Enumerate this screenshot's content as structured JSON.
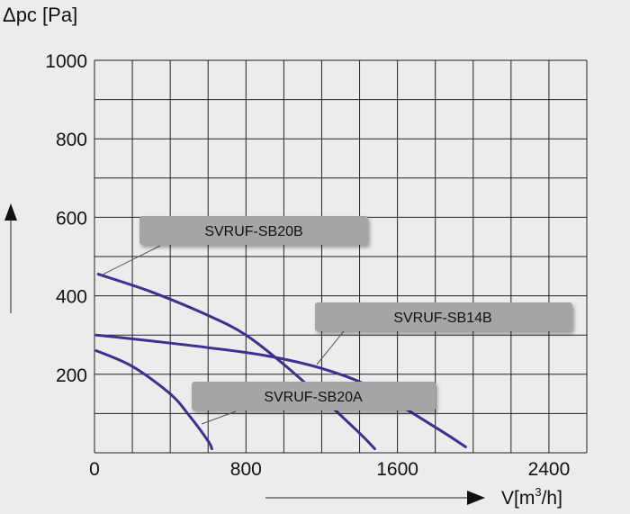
{
  "chart_data": {
    "type": "line",
    "ylabel": "Δpc [Pa]",
    "xlabel_main": "V[m",
    "xlabel_sup": "3",
    "xlabel_tail": "/h]",
    "xlim": [
      0,
      2600
    ],
    "ylim": [
      0,
      1000
    ],
    "grid": true,
    "x_ticks": [
      0,
      800,
      1600,
      2400
    ],
    "x_tick_labels": [
      "0",
      "800",
      "1600",
      "2400"
    ],
    "y_ticks": [
      200,
      400,
      600,
      800,
      1000
    ],
    "y_tick_labels": [
      "200",
      "400",
      "600",
      "800",
      "1000"
    ],
    "line_color": "#3b3191",
    "series": [
      {
        "name": "SVRUF-SB20B",
        "x": [
          20,
          300,
          600,
          800,
          1000,
          1200,
          1400,
          1480
        ],
        "y": [
          455,
          410,
          350,
          300,
          225,
          140,
          50,
          10
        ]
      },
      {
        "name": "SVRUF-SB14B",
        "x": [
          10,
          300,
          600,
          900,
          1200,
          1450,
          1650,
          1850,
          1960
        ],
        "y": [
          300,
          285,
          268,
          248,
          215,
          170,
          110,
          50,
          15
        ]
      },
      {
        "name": "SVRUF-SB20A",
        "x": [
          10,
          200,
          400,
          500,
          600,
          620
        ],
        "y": [
          260,
          220,
          150,
          95,
          30,
          10
        ]
      }
    ],
    "callout_color": "#a5a5a5"
  }
}
